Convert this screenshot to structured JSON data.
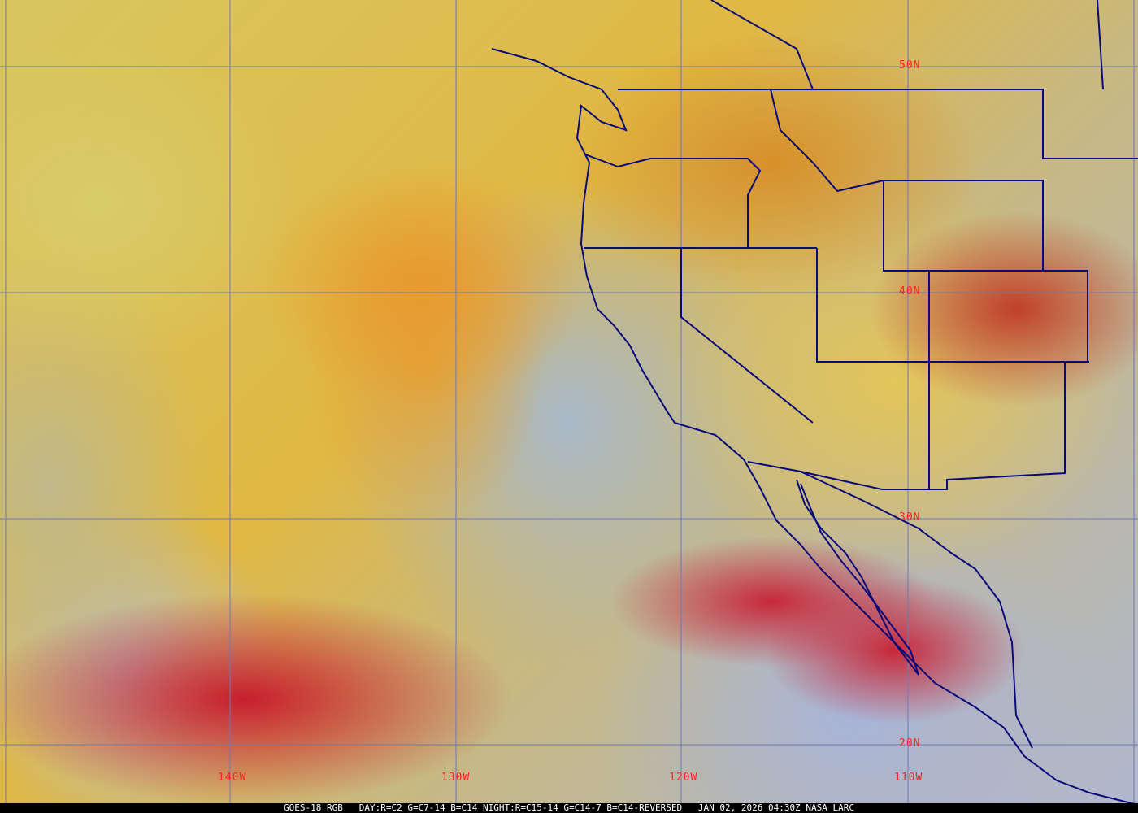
{
  "map": {
    "latitude_labels": [
      "50N",
      "40N",
      "30N",
      "20N"
    ],
    "longitude_labels": [
      "140W",
      "130W",
      "120W",
      "110W"
    ],
    "colors": {
      "grid": "#6f78b4",
      "borders": "#0a0a7a",
      "labels": "#ff2020"
    }
  },
  "caption": "GOES-18 RGB   DAY:R=C2 G=C7-14 B=C14 NIGHT:R=C15-14 G=C14-7 B=C14-REVERSED   JAN 02, 2026 04:30Z NASA LARC"
}
